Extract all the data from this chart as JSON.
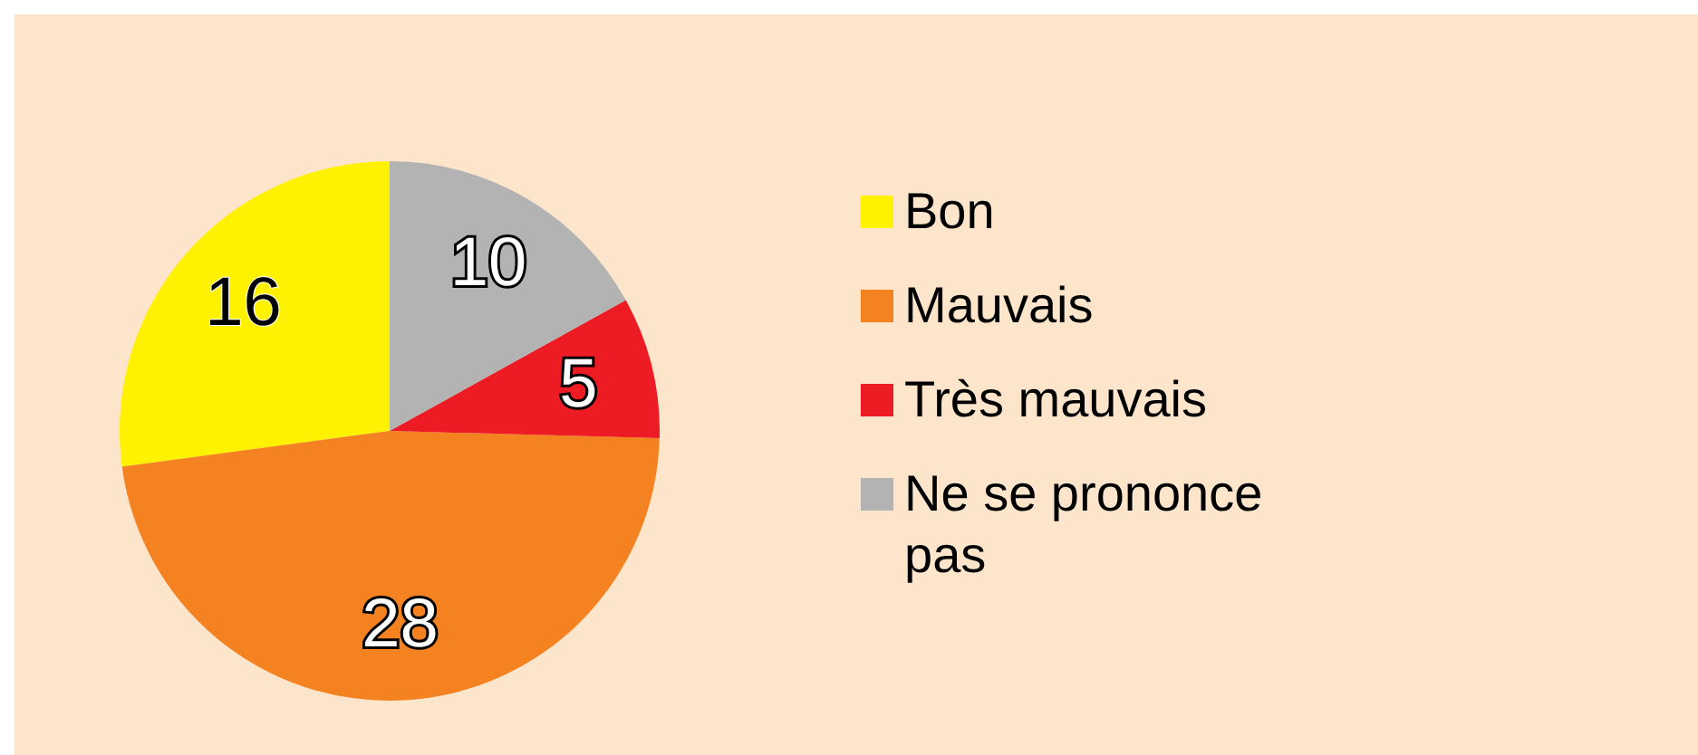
{
  "chart_data": {
    "type": "pie",
    "categories": [
      "Bon",
      "Mauvais",
      "Très mauvais",
      "Ne se prononce pas"
    ],
    "values": [
      16,
      28,
      5,
      10
    ],
    "colors": [
      "#fff200",
      "#f58220",
      "#ed1c24",
      "#b3b3b3"
    ],
    "data_labels": true,
    "legend": "right"
  }
}
